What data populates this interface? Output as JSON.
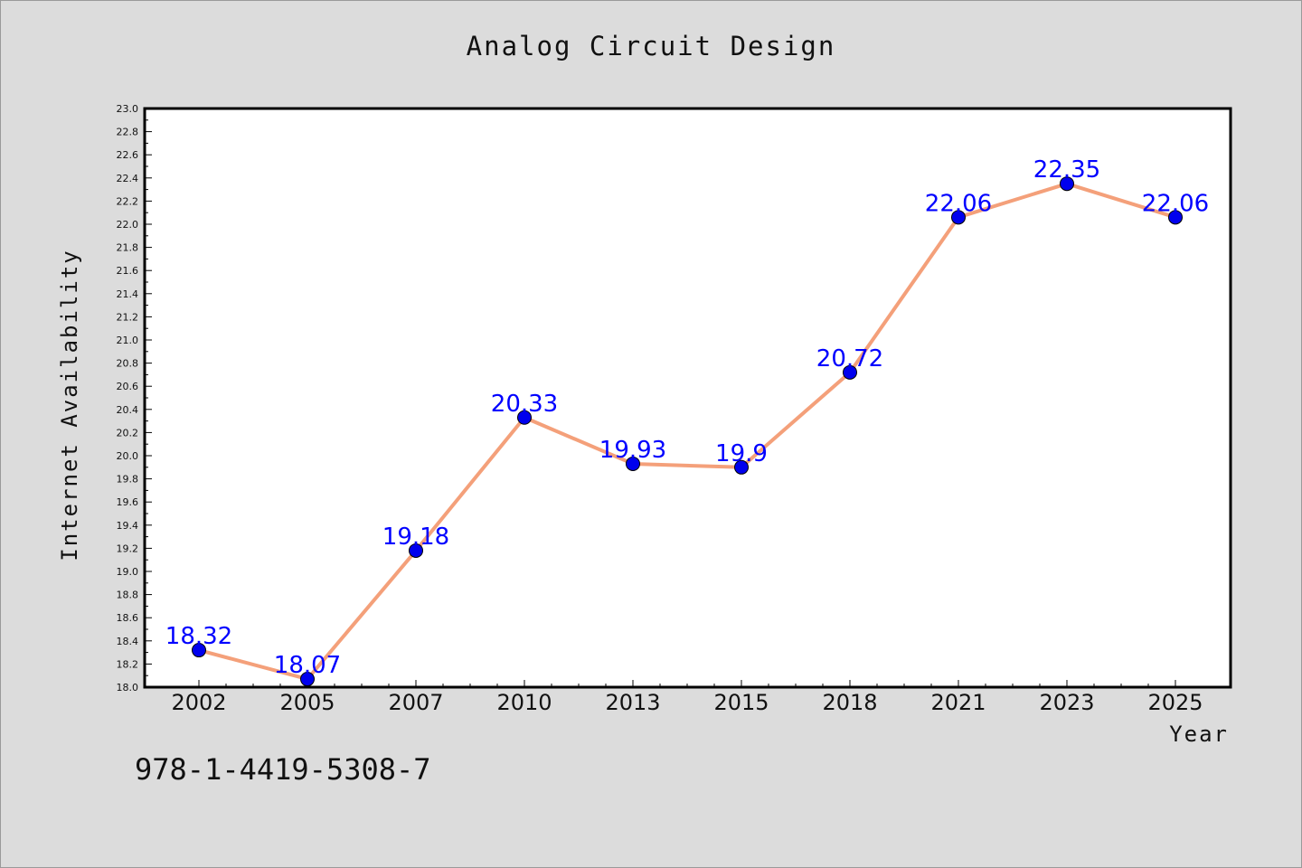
{
  "chart_data": {
    "type": "line",
    "title": "Analog Circuit Design",
    "xlabel": "Year",
    "ylabel": "Internet Availability",
    "categories": [
      "2002",
      "2005",
      "2007",
      "2010",
      "2013",
      "2015",
      "2018",
      "2021",
      "2023",
      "2025"
    ],
    "series": [
      {
        "values": [
          18.32,
          18.07,
          19.18,
          20.33,
          19.93,
          19.9,
          20.72,
          22.06,
          22.35,
          22.06
        ],
        "data_labels": [
          "18.32",
          "18.07",
          "19.18",
          "20.33",
          "19.93",
          "19.9",
          "20.72",
          "22.06",
          "22.35",
          "22.06"
        ],
        "line_color": "#f4a07a",
        "marker_color": "#0000ee"
      }
    ],
    "ylim": [
      18.0,
      23.0
    ],
    "y_tick_labels": [
      "18.0",
      "18.2",
      "18.4",
      "18.6",
      "18.8",
      "19.0",
      "19.2",
      "19.4",
      "19.6",
      "19.8",
      "20.0",
      "20.2",
      "20.4",
      "20.6",
      "20.8",
      "21.0",
      "21.2",
      "21.4",
      "21.6",
      "21.8",
      "22.0",
      "22.2",
      "22.4",
      "22.6",
      "22.8",
      "23.0"
    ],
    "grid": false,
    "data_label_color": "#0000ff"
  },
  "footer": {
    "isbn": "978-1-4419-5308-7"
  }
}
